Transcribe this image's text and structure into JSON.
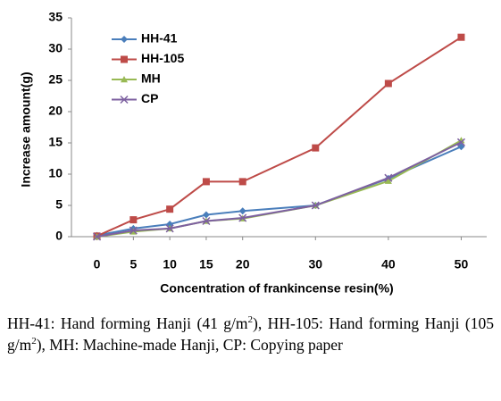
{
  "chart_data": {
    "type": "line",
    "x_label": "Concentration of frankincense resin(%)",
    "y_label": "Increase amount(g)",
    "x": [
      0,
      5,
      10,
      15,
      20,
      30,
      40,
      50
    ],
    "xlim": [
      -3.5,
      53.5
    ],
    "xticks": [
      0,
      5,
      10,
      15,
      20,
      30,
      40,
      50
    ],
    "ylim": [
      0,
      35
    ],
    "yticks": [
      0,
      5,
      10,
      15,
      20,
      25,
      30,
      35
    ],
    "grid": false,
    "legend": "upper left",
    "series": [
      {
        "name": "HH-41",
        "color": "#4a7ebb",
        "marker": "diamond",
        "values": [
          0.2,
          1.3,
          2.0,
          3.5,
          4.1,
          5.0,
          9.3,
          14.4
        ]
      },
      {
        "name": "HH-105",
        "color": "#be4b48",
        "marker": "square",
        "values": [
          0.1,
          2.7,
          4.4,
          8.8,
          8.8,
          14.2,
          24.5,
          31.9
        ]
      },
      {
        "name": "MH",
        "color": "#98b954",
        "marker": "triangle",
        "values": [
          0,
          0.8,
          1.3,
          2.5,
          2.9,
          5.0,
          8.9,
          15.4
        ]
      },
      {
        "name": "CP",
        "color": "#7d60a0",
        "marker": "x",
        "values": [
          0,
          1.0,
          1.3,
          2.5,
          3.0,
          5.0,
          9.4,
          15.1
        ]
      }
    ]
  },
  "caption": [
    "HH-41: Hand forming Hanji (41 g/m",
    "2",
    "), HH-105: Hand forming Hanji (105 g/m",
    "2",
    "), MH: Machine-made Hanji, CP: Copying paper"
  ]
}
